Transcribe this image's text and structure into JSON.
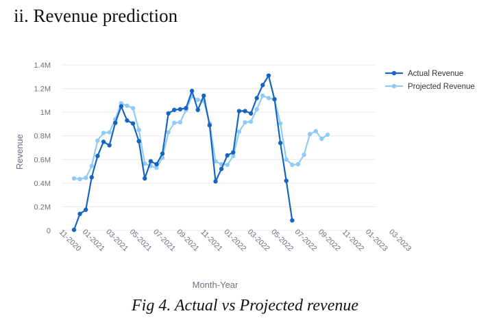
{
  "heading": "ii. Revenue prediction",
  "caption": "Fig 4. Actual vs Projected revenue",
  "chart_data": {
    "type": "line",
    "xlabel": "Month-Year",
    "ylabel": "Revenue",
    "ylim": [
      0,
      1400000
    ],
    "y_ticks": [
      0,
      200000,
      400000,
      600000,
      800000,
      1000000,
      1200000,
      1400000
    ],
    "y_tick_labels": [
      "0",
      "0.2M",
      "0.4M",
      "0.6M",
      "0.8M",
      "1M",
      "1.2M",
      "1.4M"
    ],
    "x_tick_labels": [
      "11-2020",
      "01-2021",
      "03-2021",
      "05-2021",
      "07-2021",
      "09-2021",
      "11-2021",
      "01-2022",
      "03-2022",
      "05-2022",
      "07-2022",
      "09-2022",
      "11-2022",
      "01-2023",
      "03-2023"
    ],
    "x": [
      "2020-11",
      "2020-12",
      "2021-01",
      "2021-02",
      "2021-03",
      "2021-04",
      "2021-05",
      "2021-06",
      "2021-07",
      "2021-08",
      "2021-09",
      "2021-10",
      "2021-11",
      "2021-12",
      "2022-01",
      "2022-02",
      "2022-03",
      "2022-04",
      "2022-05",
      "2022-06",
      "2022-07",
      "2022-08",
      "2022-09",
      "2022-10",
      "2022-11",
      "2022-12",
      "2023-01",
      "2023-02",
      "2023-03",
      "2023-04"
    ],
    "grid": true,
    "legend_position": "top-right",
    "series": [
      {
        "name": "Actual Revenue",
        "color": "#1565c0",
        "x": [
          "2020-11",
          "2020-11-16",
          "2020-12",
          "2020-12-16",
          "2021-01",
          "2021-01-16",
          "2021-02",
          "2021-02-15",
          "2021-03",
          "2021-03-16",
          "2021-04",
          "2021-04-16",
          "2021-05",
          "2021-05-16",
          "2021-06",
          "2021-06-16",
          "2021-07",
          "2021-07-16",
          "2021-08",
          "2021-08-16",
          "2021-09",
          "2021-09-16",
          "2021-10",
          "2021-10-16",
          "2021-11",
          "2021-11-16",
          "2021-12",
          "2021-12-16",
          "2022-01",
          "2022-01-16",
          "2022-02",
          "2022-02-15",
          "2022-03",
          "2022-03-16",
          "2022-04",
          "2022-04-16",
          "2022-05",
          "2022-05-16",
          "2022-06",
          "2022-06-16",
          "2022-07",
          "2022-07-16",
          "2022-08",
          "2022-08-16",
          "2022-09",
          "2022-09-16",
          "2022-10",
          "2022-10-16",
          "2022-11"
        ],
        "values": [
          5000,
          140000,
          175000,
          450000,
          630000,
          750000,
          720000,
          910000,
          1050000,
          930000,
          905000,
          755000,
          440000,
          585000,
          560000,
          650000,
          990000,
          1020000,
          1025000,
          1035000,
          1180000,
          1020000,
          1140000,
          890000,
          415000,
          520000,
          635000,
          660000,
          1010000,
          1010000,
          990000,
          1120000,
          1230000,
          1310000,
          1110000,
          740000,
          420000,
          85000,
          null,
          null,
          null,
          null,
          null,
          null,
          null,
          null,
          null,
          null,
          null
        ]
      },
      {
        "name": "Projected Revenue",
        "color": "#90caf9",
        "x": [
          "2020-11",
          "2020-11-16",
          "2020-12",
          "2020-12-16",
          "2021-01",
          "2021-01-16",
          "2021-02",
          "2021-02-15",
          "2021-03",
          "2021-03-16",
          "2021-04",
          "2021-04-16",
          "2021-05",
          "2021-05-16",
          "2021-06",
          "2021-06-16",
          "2021-07",
          "2021-07-16",
          "2021-08",
          "2021-08-16",
          "2021-09",
          "2021-09-16",
          "2021-10",
          "2021-10-16",
          "2021-11",
          "2021-11-16",
          "2021-12",
          "2021-12-16",
          "2022-01",
          "2022-01-16",
          "2022-02",
          "2022-02-15",
          "2022-03",
          "2022-03-16",
          "2022-04",
          "2022-04-16",
          "2022-05",
          "2022-05-16",
          "2022-06",
          "2022-06-16",
          "2022-07",
          "2022-07-16",
          "2022-08",
          "2022-08-16",
          "2022-09",
          "2022-09-16",
          "2022-10",
          "2022-10-16",
          "2022-11"
        ],
        "values": [
          440000,
          435000,
          445000,
          545000,
          760000,
          825000,
          830000,
          940000,
          1075000,
          1055000,
          1035000,
          850000,
          565000,
          545000,
          530000,
          615000,
          830000,
          910000,
          915000,
          1020000,
          1135000,
          1105000,
          1095000,
          905000,
          585000,
          560000,
          555000,
          630000,
          835000,
          915000,
          920000,
          1025000,
          1140000,
          1120000,
          1110000,
          905000,
          600000,
          555000,
          560000,
          640000,
          815000,
          840000,
          775000,
          810000,
          null,
          null,
          null,
          null,
          null
        ]
      }
    ]
  }
}
